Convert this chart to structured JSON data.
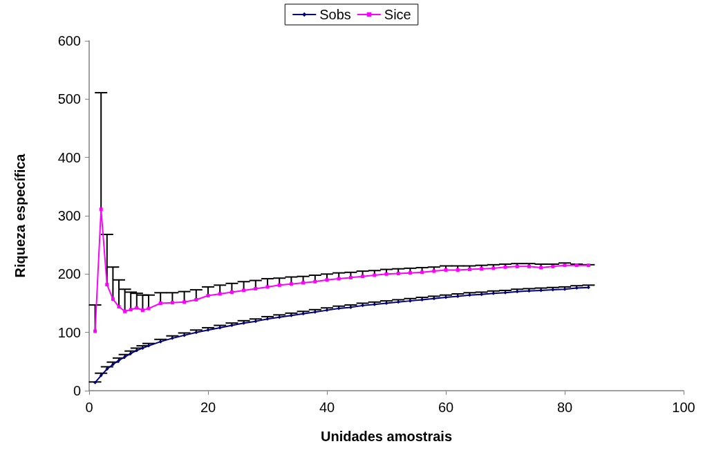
{
  "chart_data": {
    "type": "line",
    "xlabel": "Unidades amostrais",
    "ylabel": "Riqueza específica",
    "xlim": [
      0,
      100
    ],
    "xticks": [
      0,
      20,
      40,
      60,
      80,
      100
    ],
    "ylim": [
      0,
      600
    ],
    "yticks": [
      0,
      100,
      200,
      300,
      400,
      500,
      600
    ],
    "grid": false,
    "legend": "top",
    "series": [
      {
        "name": "Sobs",
        "color": "#000080",
        "marker": "diamond",
        "x": [
          1,
          2,
          3,
          4,
          5,
          6,
          7,
          8,
          9,
          10,
          12,
          14,
          16,
          18,
          20,
          22,
          24,
          26,
          28,
          30,
          32,
          34,
          36,
          38,
          40,
          42,
          44,
          46,
          48,
          50,
          52,
          54,
          56,
          58,
          60,
          62,
          64,
          66,
          68,
          70,
          72,
          74,
          76,
          78,
          80,
          82,
          84
        ],
        "values": [
          14,
          26,
          37,
          45,
          52,
          58,
          64,
          69,
          73,
          77,
          84,
          90,
          95,
          100,
          104,
          108,
          112,
          116,
          119,
          123,
          126,
          129,
          132,
          135,
          138,
          141,
          143,
          146,
          148,
          150,
          152,
          154,
          156,
          158,
          160,
          162,
          164,
          165,
          167,
          168,
          170,
          171,
          172,
          173,
          174,
          176,
          177
        ],
        "errors": [
          [
            14,
            15
          ],
          [
            26,
            30
          ],
          [
            37,
            41
          ],
          [
            45,
            49
          ],
          [
            52,
            56
          ],
          [
            58,
            62
          ],
          [
            64,
            68
          ],
          [
            69,
            73
          ],
          [
            73,
            77
          ],
          [
            77,
            81
          ],
          [
            84,
            88
          ],
          [
            90,
            94
          ],
          [
            95,
            99
          ],
          [
            100,
            104
          ],
          [
            104,
            108
          ],
          [
            108,
            112
          ],
          [
            112,
            116
          ],
          [
            116,
            120
          ],
          [
            119,
            123
          ],
          [
            123,
            127
          ],
          [
            126,
            130
          ],
          [
            129,
            133
          ],
          [
            132,
            136
          ],
          [
            135,
            139
          ],
          [
            138,
            142
          ],
          [
            141,
            145
          ],
          [
            143,
            147
          ],
          [
            146,
            150
          ],
          [
            148,
            152
          ],
          [
            150,
            154
          ],
          [
            152,
            156
          ],
          [
            154,
            158
          ],
          [
            156,
            160
          ],
          [
            158,
            162
          ],
          [
            160,
            164
          ],
          [
            162,
            166
          ],
          [
            164,
            168
          ],
          [
            165,
            169
          ],
          [
            167,
            171
          ],
          [
            168,
            172
          ],
          [
            170,
            174
          ],
          [
            171,
            175
          ],
          [
            172,
            176
          ],
          [
            173,
            177
          ],
          [
            174,
            178
          ],
          [
            176,
            180
          ],
          [
            177,
            181
          ]
        ]
      },
      {
        "name": "Sice",
        "color": "#ff00ff",
        "marker": "square",
        "x": [
          1,
          2,
          3,
          4,
          5,
          6,
          7,
          8,
          9,
          10,
          12,
          14,
          16,
          18,
          20,
          22,
          24,
          26,
          28,
          30,
          32,
          34,
          36,
          38,
          40,
          42,
          44,
          46,
          48,
          50,
          52,
          54,
          56,
          58,
          60,
          62,
          64,
          66,
          68,
          70,
          72,
          74,
          76,
          78,
          80,
          82,
          84
        ],
        "values": [
          102,
          311,
          182,
          157,
          144,
          136,
          139,
          142,
          138,
          141,
          150,
          151,
          152,
          156,
          163,
          166,
          169,
          172,
          175,
          178,
          181,
          183,
          185,
          187,
          190,
          192,
          194,
          196,
          198,
          200,
          201,
          202,
          203,
          205,
          207,
          207,
          208,
          209,
          210,
          212,
          213,
          213,
          211,
          213,
          215,
          215,
          215
        ],
        "errors": [
          [
            102,
            147
          ],
          [
            311,
            511
          ],
          [
            182,
            268
          ],
          [
            157,
            212
          ],
          [
            144,
            190
          ],
          [
            136,
            174
          ],
          [
            139,
            169
          ],
          [
            142,
            167
          ],
          [
            138,
            164
          ],
          [
            141,
            164
          ],
          [
            150,
            168
          ],
          [
            151,
            168
          ],
          [
            152,
            170
          ],
          [
            156,
            173
          ],
          [
            163,
            178
          ],
          [
            166,
            181
          ],
          [
            169,
            184
          ],
          [
            172,
            187
          ],
          [
            175,
            189
          ],
          [
            178,
            192
          ],
          [
            181,
            193
          ],
          [
            183,
            195
          ],
          [
            185,
            196
          ],
          [
            187,
            198
          ],
          [
            190,
            200
          ],
          [
            192,
            202
          ],
          [
            194,
            203
          ],
          [
            196,
            205
          ],
          [
            198,
            206
          ],
          [
            200,
            208
          ],
          [
            201,
            209
          ],
          [
            202,
            210
          ],
          [
            203,
            211
          ],
          [
            205,
            212
          ],
          [
            207,
            214
          ],
          [
            207,
            214
          ],
          [
            208,
            214
          ],
          [
            209,
            215
          ],
          [
            210,
            216
          ],
          [
            212,
            217
          ],
          [
            213,
            218
          ],
          [
            213,
            218
          ],
          [
            211,
            217
          ],
          [
            213,
            217
          ],
          [
            215,
            219
          ],
          [
            215,
            217
          ],
          [
            215,
            216
          ]
        ]
      }
    ]
  }
}
